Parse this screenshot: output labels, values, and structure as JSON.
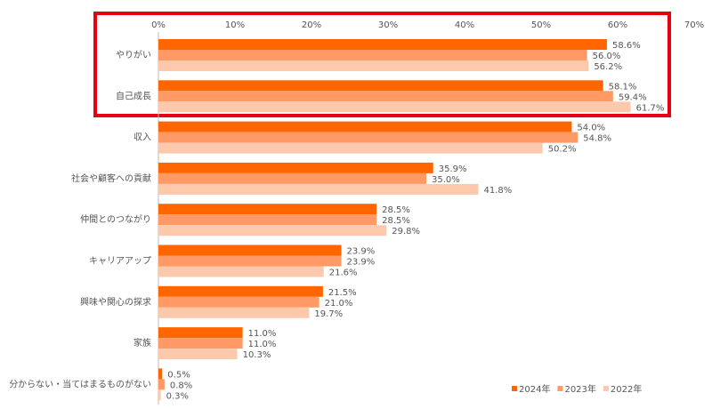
{
  "chart_data": {
    "type": "hbar",
    "categories": [
      "やりがい",
      "自己成長",
      "収入",
      "社会や顧客への貢献",
      "仲間とのつながり",
      "キャリアアップ",
      "興味や関心の探求",
      "家族",
      "分からない・当てはまるものがない"
    ],
    "series": [
      {
        "name": "2024年",
        "color": "#ff6600",
        "values": [
          58.6,
          58.1,
          54.0,
          35.9,
          28.5,
          23.9,
          21.5,
          11.0,
          0.5
        ],
        "value_labels": [
          "58.6%",
          "58.1%",
          "54.0%",
          "35.9%",
          "28.5%",
          "23.9%",
          "21.5%",
          "11.0%",
          "0.5%"
        ]
      },
      {
        "name": "2023年",
        "color": "#ff9966",
        "values": [
          56.0,
          59.4,
          54.8,
          35.0,
          28.5,
          23.9,
          21.0,
          11.0,
          0.8
        ],
        "value_labels": [
          "56.0%",
          "59.4%",
          "54.8%",
          "35.0%",
          "28.5%",
          "23.9%",
          "21.0%",
          "11.0%",
          "0.8%"
        ]
      },
      {
        "name": "2022年",
        "color": "#fdc9ac",
        "values": [
          56.2,
          61.7,
          50.2,
          41.8,
          29.8,
          21.6,
          19.7,
          10.3,
          0.3
        ],
        "value_labels": [
          "56.2%",
          "61.7%",
          "50.2%",
          "41.8%",
          "29.8%",
          "21.6%",
          "19.7%",
          "10.3%",
          "0.3%"
        ]
      }
    ],
    "xlim": [
      0,
      70
    ],
    "xticks": [
      {
        "value": 0,
        "label": "0%"
      },
      {
        "value": 10,
        "label": "10%"
      },
      {
        "value": 20,
        "label": "20%"
      },
      {
        "value": 30,
        "label": "30%"
      },
      {
        "value": 40,
        "label": "40%"
      },
      {
        "value": 50,
        "label": "50%"
      },
      {
        "value": 60,
        "label": "60%"
      },
      {
        "value": 70,
        "label": "70%"
      }
    ],
    "legend": "bottom-right"
  }
}
